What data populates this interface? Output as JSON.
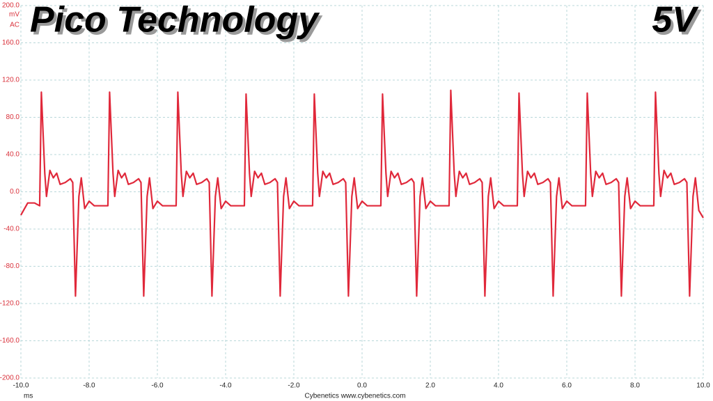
{
  "chart_data": {
    "type": "line",
    "title": "Pico Technology",
    "rail": "5V",
    "y_unit": "mV",
    "y_mode": "AC",
    "x_unit": "ms",
    "footer": "Cybenetics  www.cybenetics.com",
    "color": "#e0283a",
    "grid": true,
    "xlim": [
      -10,
      10
    ],
    "ylim": [
      -200,
      200
    ],
    "xticks": [
      {
        "value": -10,
        "label": "-10.0"
      },
      {
        "value": -8,
        "label": "-8.0"
      },
      {
        "value": -6,
        "label": "-6.0"
      },
      {
        "value": -4,
        "label": "-4.0"
      },
      {
        "value": -2,
        "label": "-2.0"
      },
      {
        "value": 0,
        "label": "0.0"
      },
      {
        "value": 2,
        "label": "2.0"
      },
      {
        "value": 4,
        "label": "4.0"
      },
      {
        "value": 6,
        "label": "6.0"
      },
      {
        "value": 8,
        "label": "8.0"
      },
      {
        "value": 10,
        "label": "10.0"
      }
    ],
    "yticks": [
      {
        "value": -200,
        "label": "-200.0"
      },
      {
        "value": -160,
        "label": "-160.0"
      },
      {
        "value": -120,
        "label": "-120.0"
      },
      {
        "value": -80,
        "label": "-80.0"
      },
      {
        "value": -40,
        "label": "-40.0"
      },
      {
        "value": 0,
        "label": "0.0"
      },
      {
        "value": 40,
        "label": "40.0"
      },
      {
        "value": 80,
        "label": "80.0"
      },
      {
        "value": 120,
        "label": "120.0"
      },
      {
        "value": 160,
        "label": "160.0"
      },
      {
        "value": 200,
        "label": "200.0"
      }
    ],
    "x": [
      -10.0,
      -9.8,
      -9.6,
      -9.45,
      -9.4,
      -9.3,
      -9.25,
      -9.15,
      -9.05,
      -8.95,
      -8.85,
      -8.7,
      -8.55,
      -8.48,
      -8.4,
      -8.3,
      -8.23,
      -8.13,
      -8.0,
      -7.85,
      -7.45,
      -7.4,
      -7.3,
      -7.25,
      -7.15,
      -7.05,
      -6.95,
      -6.85,
      -6.7,
      -6.55,
      -6.48,
      -6.4,
      -6.3,
      -6.23,
      -6.13,
      -6.0,
      -5.85,
      -5.45,
      -5.4,
      -5.3,
      -5.25,
      -5.15,
      -5.05,
      -4.95,
      -4.85,
      -4.7,
      -4.55,
      -4.48,
      -4.4,
      -4.3,
      -4.23,
      -4.13,
      -4.0,
      -3.85,
      -3.45,
      -3.4,
      -3.3,
      -3.25,
      -3.15,
      -3.05,
      -2.95,
      -2.85,
      -2.7,
      -2.55,
      -2.48,
      -2.4,
      -2.3,
      -2.23,
      -2.13,
      -2.0,
      -1.85,
      -1.45,
      -1.4,
      -1.3,
      -1.25,
      -1.15,
      -1.05,
      -0.95,
      -0.85,
      -0.7,
      -0.55,
      -0.48,
      -0.4,
      -0.3,
      -0.23,
      -0.13,
      0.0,
      0.15,
      0.55,
      0.6,
      0.7,
      0.75,
      0.85,
      0.95,
      1.05,
      1.15,
      1.3,
      1.45,
      1.52,
      1.6,
      1.7,
      1.77,
      1.87,
      2.0,
      2.15,
      2.55,
      2.6,
      2.7,
      2.75,
      2.85,
      2.95,
      3.05,
      3.15,
      3.3,
      3.45,
      3.52,
      3.6,
      3.7,
      3.77,
      3.87,
      4.0,
      4.15,
      4.55,
      4.6,
      4.7,
      4.75,
      4.85,
      4.95,
      5.05,
      5.15,
      5.3,
      5.45,
      5.52,
      5.6,
      5.7,
      5.77,
      5.87,
      6.0,
      6.15,
      6.55,
      6.6,
      6.7,
      6.75,
      6.85,
      6.95,
      7.05,
      7.15,
      7.3,
      7.45,
      7.52,
      7.6,
      7.7,
      7.77,
      7.87,
      8.0,
      8.15,
      8.55,
      8.6,
      8.7,
      8.75,
      8.85,
      8.95,
      9.05,
      9.15,
      9.3,
      9.45,
      9.52,
      9.6,
      9.7,
      9.77,
      9.87,
      10.0
    ],
    "values": [
      -25,
      -12,
      -12,
      -15,
      107,
      20,
      -5,
      23,
      15,
      20,
      8,
      10,
      14,
      10,
      -112,
      -5,
      15,
      -18,
      -10,
      -15,
      -15,
      107,
      20,
      -5,
      23,
      15,
      20,
      8,
      10,
      14,
      10,
      -112,
      -5,
      15,
      -18,
      -10,
      -15,
      -15,
      107,
      20,
      -5,
      22,
      15,
      20,
      8,
      10,
      14,
      10,
      -112,
      -5,
      15,
      -18,
      -10,
      -15,
      -15,
      105,
      20,
      -5,
      22,
      15,
      20,
      8,
      10,
      14,
      10,
      -112,
      -5,
      15,
      -18,
      -10,
      -15,
      -15,
      105,
      20,
      -5,
      22,
      15,
      20,
      8,
      10,
      14,
      10,
      -112,
      -5,
      15,
      -18,
      -10,
      -15,
      -15,
      105,
      20,
      -5,
      22,
      15,
      20,
      8,
      10,
      14,
      10,
      -112,
      -5,
      15,
      -18,
      -10,
      -15,
      -15,
      109,
      20,
      -5,
      22,
      15,
      20,
      8,
      10,
      14,
      10,
      -112,
      -5,
      15,
      -18,
      -10,
      -15,
      -15,
      106,
      20,
      -5,
      22,
      15,
      20,
      8,
      10,
      14,
      10,
      -112,
      -5,
      15,
      -18,
      -10,
      -15,
      -15,
      106,
      20,
      -5,
      22,
      15,
      20,
      8,
      10,
      14,
      10,
      -112,
      -5,
      15,
      -18,
      -10,
      -15,
      -15,
      107,
      20,
      -5,
      23,
      15,
      20,
      8,
      10,
      14,
      10,
      -112,
      -5,
      15,
      -20,
      -28
    ]
  }
}
